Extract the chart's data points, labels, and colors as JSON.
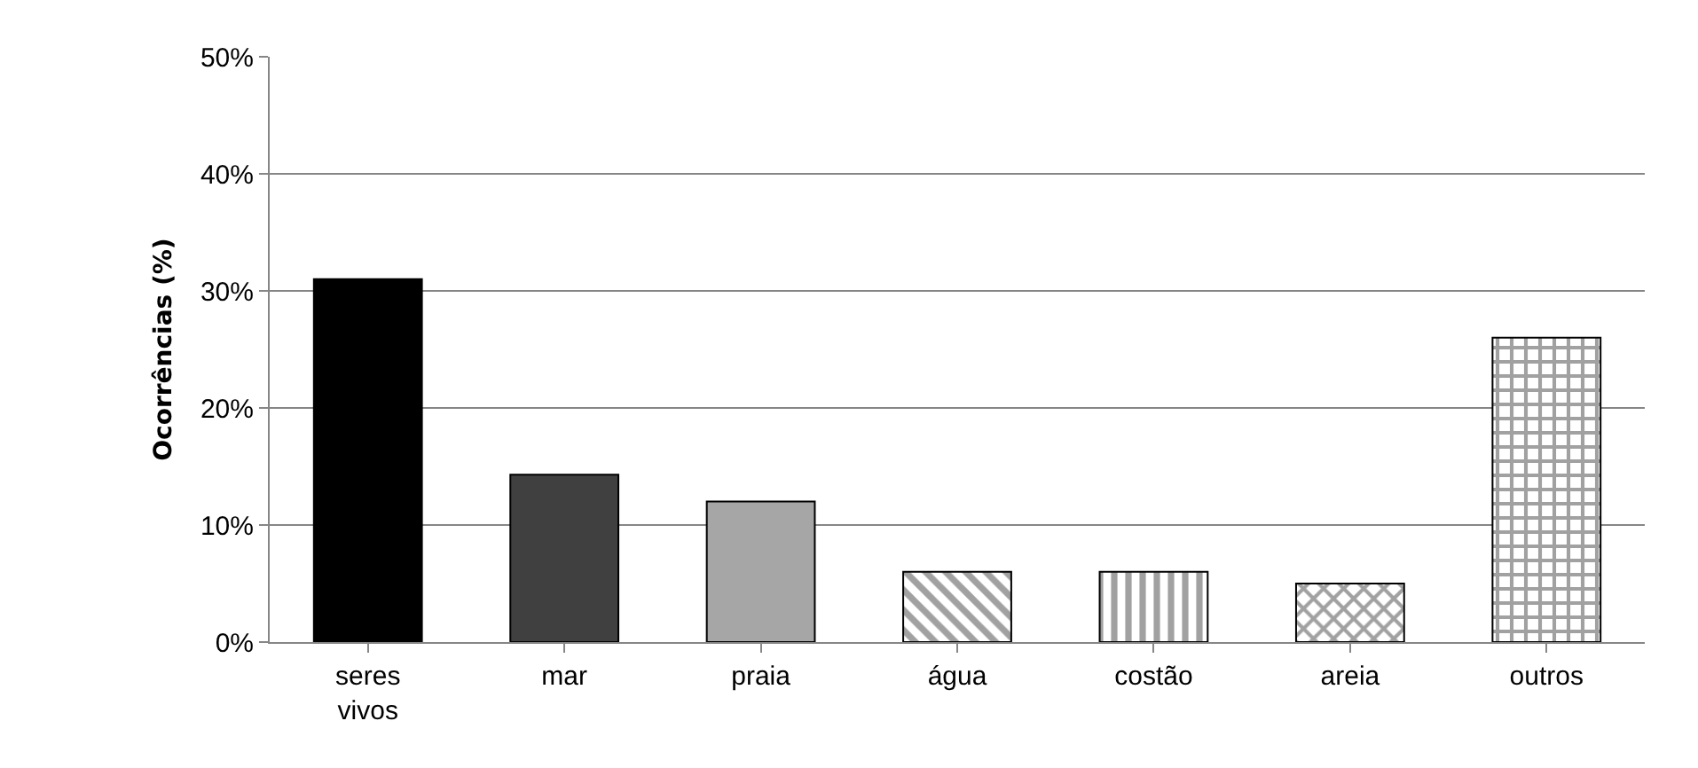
{
  "chart_data": {
    "type": "bar",
    "ylabel": "Ocorrências (%)",
    "categories": [
      "seres vivos",
      "mar",
      "praia",
      "água",
      "costão",
      "areia",
      "outros"
    ],
    "values": [
      31,
      14.3,
      12,
      6,
      6,
      5,
      26
    ],
    "colors": [
      "#000000",
      "#404040",
      "#a6a6a6",
      "#000000",
      "#000000",
      "#000000",
      "#000000"
    ],
    "ylim": [
      0,
      50
    ],
    "yticks": [
      {
        "value": 0,
        "label": "0%"
      },
      {
        "value": 10,
        "label": "10%"
      },
      {
        "value": 20,
        "label": "20%"
      },
      {
        "value": 30,
        "label": "30%"
      },
      {
        "value": 40,
        "label": "40%"
      },
      {
        "value": 50,
        "label": "50%"
      }
    ],
    "grid": "y",
    "legend": false
  }
}
